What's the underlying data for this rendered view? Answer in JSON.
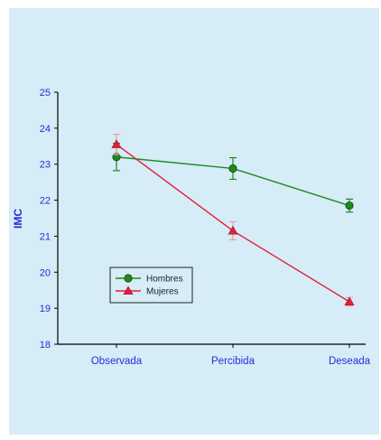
{
  "chart_data": {
    "type": "line",
    "categories": [
      "Observada",
      "Percibida",
      "Deseada"
    ],
    "ylabel": "IMC",
    "ylim": [
      18,
      25
    ],
    "yticks": [
      18,
      19,
      20,
      21,
      22,
      23,
      24,
      25
    ],
    "grid": false,
    "legend_position": "bottom-left",
    "series": [
      {
        "name": "Hombres",
        "color": "#1f8a1f",
        "marker": "circle",
        "values": [
          23.2,
          22.88,
          21.85
        ],
        "errors": [
          0.38,
          0.3,
          0.18
        ]
      },
      {
        "name": "Mujeres",
        "color": "#e0203a",
        "marker": "triangle",
        "values": [
          23.55,
          21.15,
          19.18
        ],
        "errors": [
          0.28,
          0.25,
          0.12
        ]
      }
    ]
  }
}
